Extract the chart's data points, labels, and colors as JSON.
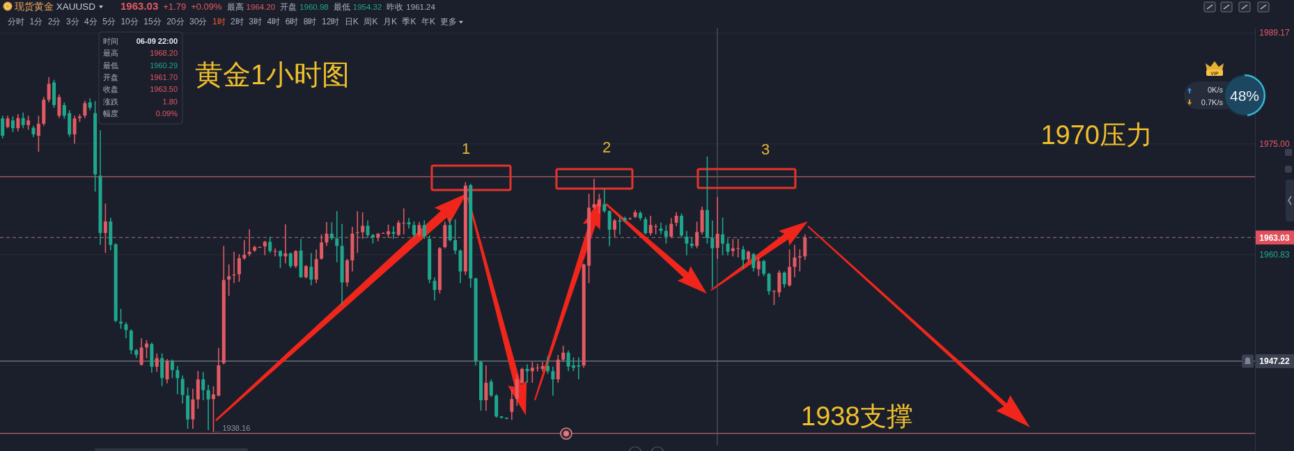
{
  "chart_data": {
    "type": "candlestick",
    "title": "黄金1小时图",
    "subtitle": "现货黄金 XAUUSD",
    "categories": [
      null,
      null,
      null,
      null,
      null,
      null,
      null,
      null,
      null,
      null,
      null,
      null,
      null,
      null,
      null,
      null,
      null,
      null,
      null,
      null,
      null,
      null,
      null,
      null,
      null,
      null,
      null,
      null,
      null,
      null,
      null,
      null,
      null,
      null,
      null,
      null,
      null,
      null,
      null,
      null,
      null,
      null,
      null,
      null,
      null,
      null,
      null,
      null,
      null,
      null,
      null,
      null,
      null,
      null,
      null,
      null,
      null,
      null,
      null,
      null,
      null,
      null,
      null,
      null,
      null,
      null,
      null,
      null,
      null,
      null,
      null,
      null,
      null,
      null,
      null,
      null,
      null,
      null,
      null,
      null,
      null,
      null,
      null,
      null,
      null,
      null,
      null,
      null,
      null,
      null,
      null,
      null,
      null,
      null,
      null,
      null,
      null,
      null,
      null,
      null,
      null,
      null,
      null,
      null,
      null,
      null,
      null,
      null,
      null,
      null,
      null,
      null,
      null,
      null,
      null,
      null,
      null,
      null,
      null,
      null,
      null,
      null,
      null,
      null,
      null,
      null,
      null,
      null,
      null,
      null,
      null,
      null,
      null,
      null,
      null,
      null,
      null,
      null,
      null,
      null,
      null,
      null,
      null,
      null,
      null,
      null,
      null,
      null,
      null,
      null,
      null,
      null,
      null,
      null,
      null,
      null,
      null,
      null,
      null,
      null,
      null,
      null,
      null,
      null,
      null,
      null,
      null,
      null,
      null,
      null,
      null,
      null,
      null,
      null,
      null,
      null,
      null,
      null,
      null,
      null,
      null,
      null,
      null,
      null,
      null,
      null,
      null,
      null,
      null,
      null,
      null,
      null,
      null,
      null,
      null,
      null,
      null,
      null,
      null,
      null,
      null,
      null,
      null,
      null,
      null,
      null,
      null,
      null,
      null,
      null,
      null,
      null,
      null,
      null,
      null,
      null,
      null,
      null,
      null,
      null,
      null,
      null,
      null,
      null,
      null,
      null,
      null,
      null,
      null,
      null,
      null,
      null,
      null,
      null,
      null,
      null,
      null,
      null,
      null,
      null,
      null,
      null,
      null,
      null
    ],
    "ohlc": [
      [
        1978.25,
        1978.6,
        1975.7,
        1976.04
      ],
      [
        1977.16,
        1978.6,
        1977.0,
        1978.25
      ],
      [
        1978.0,
        1978.5,
        1976.5,
        1977.0
      ],
      [
        1977.0,
        1978.8,
        1976.6,
        1978.3
      ],
      [
        1978.3,
        1979.0,
        1977.0,
        1977.4
      ],
      [
        1977.4,
        1978.6,
        1976.8,
        1978.0
      ],
      [
        1977.06,
        1977.3,
        1975.87,
        1976.21
      ],
      [
        1976.04,
        1978.59,
        1974.0,
        1977.57
      ],
      [
        1977.57,
        1981.0,
        1977.3,
        1980.64
      ],
      [
        1980.64,
        1983.53,
        1980.3,
        1982.68
      ],
      [
        1982.85,
        1983.2,
        1979.6,
        1979.96
      ],
      [
        1978.59,
        1981.3,
        1978.3,
        1980.98
      ],
      [
        1979.96,
        1980.3,
        1978.2,
        1978.59
      ],
      [
        1978.93,
        1979.3,
        1975.9,
        1976.21
      ],
      [
        1976.21,
        1978.6,
        1975.02,
        1978.25
      ],
      [
        1978.3,
        1978.8,
        1977.8,
        1978.5
      ],
      [
        1978.6,
        1980.5,
        1978.3,
        1980.2
      ],
      [
        1980.3,
        1980.8,
        1979.3,
        1979.62
      ],
      [
        1978.93,
        1980.47,
        1968.89,
        1971.1
      ],
      [
        1970.93,
        1976.72,
        1962.08,
        1963.61
      ],
      [
        1963.61,
        1967.36,
        1961.06,
        1965.08
      ],
      [
        1965.08,
        1965.55,
        1961.4,
        1962.08
      ],
      [
        1962.15,
        1962.3,
        1952.2,
        1952.38
      ],
      [
        1952.27,
        1953.91,
        1951.36,
        1952.04
      ],
      [
        1951.93,
        1952.2,
        1950.16,
        1951.19
      ],
      [
        1951.12,
        1951.3,
        1948.12,
        1948.63
      ],
      [
        1948.63,
        1948.8,
        1947.61,
        1948.02
      ],
      [
        1946.76,
        1950.16,
        1946.66,
        1948.97
      ],
      [
        1948.97,
        1949.93,
        1947.61,
        1949.48
      ],
      [
        1949.41,
        1949.6,
        1945.74,
        1946.52
      ],
      [
        1946.52,
        1948.22,
        1945.84,
        1947.61
      ],
      [
        1947.61,
        1948.22,
        1944.03,
        1945.06
      ],
      [
        1944.89,
        1947.5,
        1944.38,
        1947.27
      ],
      [
        1947.27,
        1947.44,
        1945.06,
        1946.08
      ],
      [
        1946.08,
        1946.59,
        1943.01,
        1945.06
      ],
      [
        1944.95,
        1945.4,
        1941.82,
        1942.91
      ],
      [
        1942.84,
        1943.86,
        1938.59,
        1939.78
      ],
      [
        1939.78,
        1943.69,
        1938.59,
        1942.33
      ],
      [
        1942.33,
        1945.98,
        1941.14,
        1944.89
      ],
      [
        1944.89,
        1945.84,
        1942.23,
        1943.52
      ],
      [
        1943.52,
        1944.2,
        1938.4,
        1942.33
      ],
      [
        1942.38,
        1944.01,
        1938.16,
        1942.97
      ],
      [
        1942.82,
        1948.9,
        1942.73,
        1946.68
      ],
      [
        1946.97,
        1961.95,
        1946.82,
        1957.59
      ],
      [
        1957.65,
        1959.6,
        1955.57,
        1958.09
      ],
      [
        1958.18,
        1961.21,
        1957.2,
        1958.3
      ],
      [
        1958.33,
        1960.91,
        1957.35,
        1960.38
      ],
      [
        1960.38,
        1962.69,
        1960.17,
        1960.82
      ],
      [
        1960.91,
        1964.1,
        1960.62,
        1961.21
      ],
      [
        1961.36,
        1962.0,
        1961.2,
        1961.8
      ],
      [
        1961.8,
        1961.9,
        1961.7,
        1961.8
      ],
      [
        1961.89,
        1962.6,
        1960.76,
        1962.48
      ],
      [
        1962.48,
        1963.14,
        1961.06,
        1961.3
      ],
      [
        1961.3,
        1961.65,
        1960.62,
        1961.3
      ],
      [
        1961.3,
        1961.4,
        1959.13,
        1960.62
      ],
      [
        1960.62,
        1964.71,
        1959.72,
        1961.0
      ],
      [
        1961.0,
        1961.1,
        1959.13,
        1959.37
      ],
      [
        1959.37,
        1961.4,
        1959.13,
        1961.3
      ],
      [
        1961.36,
        1962.84,
        1957.86,
        1957.95
      ],
      [
        1957.95,
        1959.5,
        1957.8,
        1959.37
      ],
      [
        1959.28,
        1961.06,
        1956.91,
        1957.65
      ],
      [
        1957.65,
        1961.5,
        1957.2,
        1960.26
      ],
      [
        1960.32,
        1963.43,
        1960.2,
        1962.39
      ],
      [
        1962.39,
        1965.0,
        1961.95,
        1963.52
      ],
      [
        1963.52,
        1964.97,
        1962.69,
        1962.93
      ],
      [
        1962.9,
        1966.4,
        1959.87,
        1961.95
      ],
      [
        1961.95,
        1964.77,
        1954.39,
        1957.29
      ],
      [
        1957.29,
        1960.3,
        1956.76,
        1960.11
      ],
      [
        1960.11,
        1964.38,
        1958.69,
        1963.52
      ],
      [
        1963.6,
        1966.4,
        1961.06,
        1963.7
      ],
      [
        1963.7,
        1966.25,
        1962.84,
        1964.53
      ],
      [
        1964.53,
        1965.21,
        1962.99,
        1963.34
      ],
      [
        1963.34,
        1963.5,
        1962.25,
        1963.05
      ],
      [
        1963.05,
        1963.6,
        1962.54,
        1963.52
      ],
      [
        1963.6,
        1963.7,
        1963.5,
        1963.6
      ],
      [
        1963.43,
        1964.68,
        1962.99,
        1963.82
      ],
      [
        1963.73,
        1964.47,
        1962.84,
        1963.52
      ],
      [
        1963.37,
        1965.21,
        1963.2,
        1964.92
      ],
      [
        1964.92,
        1966.75,
        1963.43,
        1964.92
      ],
      [
        1964.97,
        1965.51,
        1964.17,
        1964.71
      ],
      [
        1964.62,
        1965.1,
        1962.99,
        1963.37
      ],
      [
        1963.37,
        1965.0,
        1963.1,
        1964.62
      ],
      [
        1964.62,
        1965.21,
        1962.84,
        1963.14
      ],
      [
        1962.84,
        1963.3,
        1957.2,
        1957.65
      ],
      [
        1957.5,
        1957.95,
        1954.98,
        1956.32
      ],
      [
        1956.32,
        1961.8,
        1955.87,
        1961.65
      ],
      [
        1961.8,
        1965.06,
        1961.65,
        1964.62
      ],
      [
        1964.62,
        1965.51,
        1962.54,
        1962.69
      ],
      [
        1962.69,
        1965.36,
        1960.91,
        1961.36
      ],
      [
        1961.36,
        1961.5,
        1957.2,
        1958.69
      ],
      [
        1958.69,
        1970.11,
        1958.24,
        1969.66
      ],
      [
        1969.72,
        1969.9,
        1956.61,
        1957.8
      ],
      [
        1957.8,
        1957.9,
        1946.68,
        1947.27
      ],
      [
        1947.12,
        1947.3,
        1940.89,
        1942.23
      ],
      [
        1942.23,
        1946.68,
        1940.89,
        1944.45
      ],
      [
        1944.6,
        1944.9,
        1942.67,
        1942.82
      ],
      [
        1942.82,
        1943.0,
        1940.0,
        1940.15
      ],
      [
        1940.15,
        1940.2,
        1939.9,
        1940.0
      ],
      [
        1940.0,
        1940.0,
        1939.8,
        1939.86
      ],
      [
        1940.75,
        1943.56,
        1939.71,
        1942.38
      ],
      [
        1942.4,
        1945.5,
        1941.5,
        1944.9
      ],
      [
        1944.45,
        1946.38,
        1944.3,
        1946.23
      ],
      [
        1946.23,
        1946.83,
        1944.45,
        1945.94
      ],
      [
        1945.94,
        1947.12,
        1944.45,
        1946.38
      ],
      [
        1946.38,
        1946.9,
        1945.9,
        1946.38
      ],
      [
        1946.23,
        1947.12,
        1945.9,
        1946.59
      ],
      [
        1946.59,
        1947.86,
        1945.6,
        1945.94
      ],
      [
        1945.94,
        1946.5,
        1942.82,
        1944.9
      ],
      [
        1944.9,
        1948.01,
        1944.45,
        1947.42
      ],
      [
        1947.42,
        1949.2,
        1947.12,
        1948.31
      ],
      [
        1948.31,
        1948.6,
        1945.94,
        1946.53
      ],
      [
        1946.68,
        1947.71,
        1945.94,
        1946.38
      ],
      [
        1946.68,
        1947.71,
        1944.9,
        1946.53
      ],
      [
        1946.68,
        1959.7,
        1946.38,
        1959.58
      ],
      [
        1959.43,
        1968.62,
        1957.2,
        1966.84
      ],
      [
        1966.84,
        1970.55,
        1966.69,
        1967.29
      ],
      [
        1966.99,
        1968.62,
        1966.1,
        1967.88
      ],
      [
        1967.29,
        1969.22,
        1966.2,
        1966.4
      ],
      [
        1966.4,
        1966.5,
        1961.95,
        1964.03
      ],
      [
        1964.03,
        1965.4,
        1963.05,
        1965.21
      ],
      [
        1965.21,
        1965.66,
        1963.43,
        1965.06
      ],
      [
        1965.51,
        1965.7,
        1965.0,
        1965.21
      ],
      [
        1965.45,
        1965.6,
        1965.3,
        1965.45
      ],
      [
        1965.66,
        1966.55,
        1965.51,
        1966.25
      ],
      [
        1966.16,
        1966.4,
        1965.21,
        1965.51
      ],
      [
        1965.36,
        1965.66,
        1963.43,
        1963.58
      ],
      [
        1963.58,
        1965.81,
        1963.28,
        1964.62
      ],
      [
        1964.47,
        1964.77,
        1963.43,
        1964.47
      ],
      [
        1964.17,
        1964.92,
        1963.43,
        1963.88
      ],
      [
        1963.88,
        1964.62,
        1962.25,
        1963.14
      ],
      [
        1963.14,
        1965.51,
        1962.99,
        1964.77
      ],
      [
        1964.92,
        1966.25,
        1964.47,
        1965.81
      ],
      [
        1965.81,
        1966.1,
        1962.99,
        1963.28
      ],
      [
        1963.14,
        1963.88,
        1960.76,
        1962.25
      ],
      [
        1962.25,
        1962.99,
        1961.65,
        1961.95
      ],
      [
        1961.95,
        1965.06,
        1961.65,
        1963.73
      ],
      [
        1963.73,
        1966.99,
        1963.43,
        1966.55
      ],
      [
        1966.55,
        1973.37,
        1962.25,
        1962.99
      ],
      [
        1962.99,
        1965.21,
        1956.61,
        1961.65
      ],
      [
        1961.7,
        1968.2,
        1960.29,
        1963.5
      ],
      [
        1963.43,
        1965.57,
        1960.76,
        1962.25
      ],
      [
        1962.25,
        1962.9,
        1960.76,
        1961.21
      ],
      [
        1961.3,
        1962.84,
        1960.62,
        1961.65
      ],
      [
        1961.65,
        1962.84,
        1960.47,
        1961.65
      ],
      [
        1961.51,
        1961.95,
        1958.98,
        1960.17
      ],
      [
        1960.23,
        1961.36,
        1959.87,
        1961.21
      ],
      [
        1960.91,
        1961.06,
        1958.69,
        1959.13
      ],
      [
        1958.98,
        1960.47,
        1958.09,
        1960.02
      ],
      [
        1960.02,
        1960.17,
        1958.09,
        1958.39
      ],
      [
        1958.39,
        1958.5,
        1955.72,
        1956.17
      ],
      [
        1956.17,
        1956.32,
        1954.39,
        1956.17
      ],
      [
        1956.02,
        1958.84,
        1955.43,
        1958.54
      ],
      [
        1958.54,
        1958.7,
        1956.61,
        1957.06
      ],
      [
        1956.91,
        1961.51,
        1956.76,
        1959.28
      ],
      [
        1959.28,
        1962.1,
        1957.95,
        1960.47
      ],
      [
        1960.47,
        1961.51,
        1958.69,
        1960.62
      ],
      [
        1960.62,
        1963.43,
        1960.17,
        1963.03
      ],
      null,
      null,
      null,
      null,
      null,
      null,
      null,
      null,
      null,
      null,
      null,
      null,
      null,
      null,
      null,
      null,
      null,
      null,
      null,
      null,
      null,
      null,
      null,
      null,
      null,
      null,
      null,
      null,
      null,
      null,
      null,
      null,
      null,
      null,
      null,
      null,
      null,
      null,
      null,
      null,
      null,
      null,
      null,
      null,
      null,
      null,
      null,
      null,
      null,
      null,
      null,
      null,
      null,
      null,
      null,
      null,
      null,
      null,
      null,
      null,
      null,
      null,
      null,
      null,
      null,
      null,
      null,
      null,
      null,
      null,
      null,
      null,
      null,
      null,
      null,
      null,
      null,
      null,
      null,
      null,
      null,
      null,
      null,
      null,
      null,
      null,
      null
    ],
    "colors": [
      "#1fa78e",
      "#e25a63",
      "#1fa78e",
      "#e25a63",
      "#1fa78e",
      "#e25a63",
      "#1fa78e",
      "#e25a63",
      "#e25a63",
      "#e25a63",
      "#1fa78e",
      "#e25a63",
      "#1fa78e",
      "#1fa78e",
      "#e25a63",
      "#e25a63",
      "#e25a63",
      "#1fa78e",
      "#1fa78e",
      "#1fa78e",
      "#e25a63",
      "#1fa78e",
      "#1fa78e",
      "#1fa78e",
      "#1fa78e",
      "#1fa78e",
      "#1fa78e",
      "#e25a63",
      "#e25a63",
      "#1fa78e",
      "#e25a63",
      "#1fa78e",
      "#e25a63",
      "#1fa78e",
      "#1fa78e",
      "#1fa78e",
      "#1fa78e",
      "#e25a63",
      "#e25a63",
      "#1fa78e",
      "#1fa78e",
      "#e25a63",
      "#e25a63",
      "#e25a63",
      "#e25a63",
      "#e25a63",
      "#e25a63",
      "#e25a63",
      "#e25a63",
      "#e25a63",
      "#e25a63",
      "#e25a63",
      "#1fa78e",
      "#e25a63",
      "#1fa78e",
      "#e25a63",
      "#1fa78e",
      "#e25a63",
      "#1fa78e",
      "#e25a63",
      "#1fa78e",
      "#e25a63",
      "#e25a63",
      "#e25a63",
      "#1fa78e",
      "#1fa78e",
      "#1fa78e",
      "#e25a63",
      "#e25a63",
      "#e25a63",
      "#e25a63",
      "#1fa78e",
      "#1fa78e",
      "#e25a63",
      "#e25a63",
      "#e25a63",
      "#1fa78e",
      "#e25a63",
      "#e25a63",
      "#1fa78e",
      "#1fa78e",
      "#e25a63",
      "#1fa78e",
      "#1fa78e",
      "#1fa78e",
      "#e25a63",
      "#e25a63",
      "#1fa78e",
      "#1fa78e",
      "#1fa78e",
      "#e25a63",
      "#1fa78e",
      "#1fa78e",
      "#1fa78e",
      "#e25a63",
      "#1fa78e",
      "#1fa78e",
      "#1fa78e",
      "#1fa78e",
      "#e25a63",
      "#e25a63",
      "#e25a63",
      "#1fa78e",
      "#e25a63",
      "#e25a63",
      "#e25a63",
      "#1fa78e",
      "#1fa78e",
      "#e25a63",
      "#e25a63",
      "#1fa78e",
      "#1fa78e",
      "#1fa78e",
      "#e25a63",
      "#e25a63",
      "#e25a63",
      "#e25a63",
      "#1fa78e",
      "#1fa78e",
      "#e25a63",
      "#1fa78e",
      "#1fa78e",
      "#e25a63",
      "#e25a63",
      "#1fa78e",
      "#1fa78e",
      "#e25a63",
      "#e25a63",
      "#1fa78e",
      "#1fa78e",
      "#e25a63",
      "#e25a63",
      "#1fa78e",
      "#1fa78e",
      "#1fa78e",
      "#e25a63",
      "#e25a63",
      "#1fa78e",
      "#1fa78e",
      "#e25a63",
      "#1fa78e",
      "#1fa78e",
      "#e25a63",
      "#e25a63",
      "#1fa78e",
      "#e25a63",
      "#1fa78e",
      "#e25a63",
      "#1fa78e",
      "#1fa78e",
      "#e25a63",
      "#e25a63",
      "#1fa78e",
      "#e25a63",
      "#e25a63",
      "#e25a63",
      "#e25a63",
      null,
      null,
      null,
      null,
      null,
      null,
      null,
      null,
      null,
      null,
      null,
      null,
      null,
      null,
      null,
      null,
      null,
      null,
      null,
      null,
      null,
      null,
      null,
      null,
      null,
      null,
      null,
      null,
      null,
      null,
      null,
      null,
      null,
      null,
      null,
      null,
      null,
      null,
      null,
      null,
      null,
      null,
      null,
      null,
      null,
      null,
      null,
      null,
      null,
      null,
      null,
      null,
      null,
      null,
      null,
      null,
      null,
      null,
      null,
      null,
      null,
      null,
      null,
      null,
      null,
      null,
      null,
      null,
      null,
      null,
      null,
      null,
      null,
      null,
      null,
      null,
      null,
      null,
      null,
      null,
      null,
      null,
      null,
      null,
      null,
      null,
      null
    ],
    "ylim": [
      1936.45,
      1989.83
    ],
    "yticks": [
      1989.17,
      {
        "value": 1975,
        "label": "1975.00"
      },
      1960.83,
      {
        "value": 1946.66,
        "label": null
      }
    ],
    "grid": "y",
    "tick_labels": "y",
    "ref_lines": [
      {
        "axis": "y",
        "value": 1970.8,
        "label": "1970压力",
        "color": "#b5656d"
      },
      {
        "axis": "y",
        "value": 1938,
        "label": "1938支撑",
        "color": "#b5656d"
      },
      {
        "axis": "y",
        "value": 1963.03,
        "label": "1963.03",
        "color": "#9c7a84",
        "line_style": "dashed"
      },
      {
        "axis": "y",
        "value": 1947.22,
        "label": "1947.22",
        "color": "#7d828e"
      }
    ],
    "annotations": [
      "1963.03",
      "+1.79",
      "+0.09%",
      "最高",
      "1964.20",
      "开盘",
      "1960.98",
      "最低",
      "1954.32",
      "昨收",
      "1961.24",
      "分时",
      "1分",
      "2分",
      "3分",
      "4分",
      "5分",
      "10分",
      "15分",
      "20分",
      "30分",
      "1时",
      "2时",
      "3时",
      "4时",
      "6时",
      "8时",
      "12时",
      "日K",
      "周K",
      "月K",
      "季K",
      "年K",
      "更多",
      "时间",
      "06-09 22:00",
      "最高",
      "1968.20",
      "最低",
      "1960.29",
      "开盘",
      "1961.70",
      "收盘",
      "1963.50",
      "涨跌",
      "1.80",
      "幅度",
      "0.09%",
      "1",
      "2",
      "3",
      {
        "text": "1938.16",
        "y": 1938.16
      },
      "VIP",
      "0K/s",
      "0.7K/s",
      "48%"
    ]
  }
}
